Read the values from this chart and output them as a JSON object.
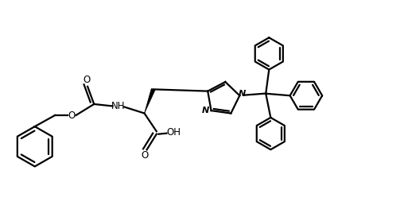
{
  "background_color": "#ffffff",
  "line_color": "#000000",
  "line_width": 1.6,
  "fig_width": 5.08,
  "fig_height": 2.78,
  "dpi": 100,
  "xlim": [
    0,
    10
  ],
  "ylim": [
    0,
    5.5
  ]
}
